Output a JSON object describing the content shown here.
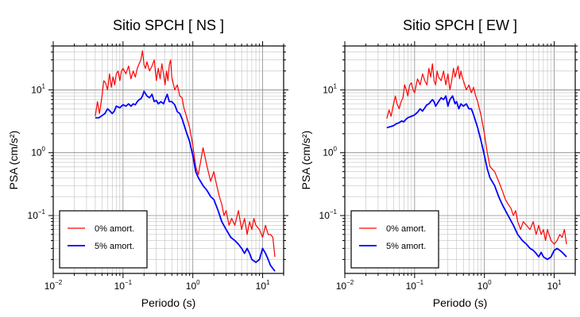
{
  "chart_data": [
    {
      "type": "line",
      "title": "Sitio SPCH [ NS ]",
      "xlabel": "Periodo (s)",
      "ylabel": "PSA (cm/s²)",
      "xscale": "log",
      "yscale": "log",
      "xlim": [
        0.01,
        20
      ],
      "ylim": [
        0.012,
        50
      ],
      "grid": true,
      "legend_position": "lower-left",
      "xticks": [
        {
          "base": "10",
          "exp": "−2"
        },
        {
          "base": "10",
          "exp": "−1"
        },
        {
          "base": "10",
          "exp": "0"
        },
        {
          "base": "10",
          "exp": "1"
        }
      ],
      "yticks": [
        {
          "base": "10",
          "exp": "−1"
        },
        {
          "base": "10",
          "exp": "0"
        },
        {
          "base": "10",
          "exp": "1"
        }
      ],
      "series": [
        {
          "name": "0% amort.",
          "color": "#ff0000",
          "x": [
            0.04,
            0.043,
            0.046,
            0.05,
            0.053,
            0.056,
            0.06,
            0.064,
            0.068,
            0.072,
            0.076,
            0.08,
            0.085,
            0.09,
            0.095,
            0.1,
            0.11,
            0.12,
            0.13,
            0.14,
            0.15,
            0.16,
            0.17,
            0.18,
            0.19,
            0.2,
            0.21,
            0.22,
            0.24,
            0.26,
            0.28,
            0.3,
            0.32,
            0.34,
            0.36,
            0.38,
            0.4,
            0.42,
            0.44,
            0.46,
            0.48,
            0.5,
            0.55,
            0.6,
            0.65,
            0.7,
            0.75,
            0.8,
            0.9,
            1.0,
            1.1,
            1.2,
            1.4,
            1.6,
            1.8,
            2.0,
            2.2,
            2.4,
            2.6,
            2.8,
            3.0,
            3.3,
            3.6,
            4.0,
            4.5,
            5.0,
            5.5,
            6.0,
            6.5,
            7.0,
            7.5,
            8.0,
            9.0,
            10.0,
            11.0,
            12.0,
            13.0,
            14.0,
            15.0
          ],
          "y": [
            3.8,
            6.5,
            4.2,
            8.0,
            14.0,
            13.0,
            10.0,
            18.0,
            11.0,
            16.0,
            12.0,
            18.0,
            20.0,
            14.0,
            20.0,
            22.0,
            18.0,
            24.0,
            15.0,
            20.0,
            16.0,
            22.0,
            26.0,
            30.0,
            42.0,
            25.0,
            22.0,
            28.0,
            20.0,
            24.0,
            30.0,
            14.0,
            22.0,
            15.0,
            26.0,
            18.0,
            12.0,
            20.0,
            14.0,
            25.0,
            30.0,
            16.0,
            10.0,
            12.0,
            8.0,
            7.5,
            5.0,
            4.0,
            2.5,
            1.3,
            0.6,
            0.45,
            1.2,
            0.6,
            0.35,
            0.5,
            0.3,
            0.2,
            0.15,
            0.1,
            0.12,
            0.07,
            0.09,
            0.07,
            0.12,
            0.06,
            0.09,
            0.05,
            0.08,
            0.06,
            0.09,
            0.07,
            0.06,
            0.045,
            0.07,
            0.05,
            0.05,
            0.045,
            0.022
          ]
        },
        {
          "name": "5% amort.",
          "color": "#0000ff",
          "x": [
            0.04,
            0.045,
            0.05,
            0.055,
            0.06,
            0.065,
            0.07,
            0.075,
            0.08,
            0.09,
            0.1,
            0.11,
            0.12,
            0.13,
            0.14,
            0.15,
            0.16,
            0.17,
            0.18,
            0.19,
            0.2,
            0.22,
            0.24,
            0.26,
            0.28,
            0.3,
            0.32,
            0.35,
            0.38,
            0.4,
            0.43,
            0.46,
            0.5,
            0.55,
            0.6,
            0.65,
            0.7,
            0.8,
            0.9,
            1.0,
            1.1,
            1.2,
            1.4,
            1.6,
            1.8,
            2.0,
            2.3,
            2.6,
            3.0,
            3.5,
            4.0,
            4.5,
            5.0,
            5.5,
            6.0,
            6.5,
            7.0,
            8.0,
            9.0,
            10.0,
            11.0,
            12.0,
            13.0,
            15.0
          ],
          "y": [
            3.6,
            3.6,
            3.9,
            4.2,
            5.0,
            4.6,
            4.2,
            4.6,
            5.5,
            5.2,
            5.8,
            5.5,
            6.0,
            5.5,
            6.0,
            5.8,
            6.5,
            7.0,
            7.2,
            8.0,
            9.5,
            8.0,
            7.5,
            8.5,
            6.5,
            6.8,
            6.0,
            6.5,
            6.0,
            7.0,
            8.5,
            6.5,
            6.5,
            5.8,
            4.5,
            4.2,
            3.5,
            2.2,
            1.5,
            0.9,
            0.5,
            0.4,
            0.3,
            0.25,
            0.2,
            0.18,
            0.12,
            0.08,
            0.06,
            0.045,
            0.04,
            0.035,
            0.03,
            0.025,
            0.03,
            0.025,
            0.02,
            0.018,
            0.02,
            0.03,
            0.025,
            0.02,
            0.016,
            0.013
          ]
        }
      ]
    },
    {
      "type": "line",
      "title": "Sitio SPCH [ EW ]",
      "xlabel": "Periodo (s)",
      "ylabel": "PSA (cm/s²)",
      "xscale": "log",
      "yscale": "log",
      "xlim": [
        0.01,
        20
      ],
      "ylim": [
        0.012,
        50
      ],
      "grid": true,
      "legend_position": "lower-left",
      "xticks": [
        {
          "base": "10",
          "exp": "−2"
        },
        {
          "base": "10",
          "exp": "−1"
        },
        {
          "base": "10",
          "exp": "0"
        },
        {
          "base": "10",
          "exp": "1"
        }
      ],
      "yticks": [
        {
          "base": "10",
          "exp": "−1"
        },
        {
          "base": "10",
          "exp": "0"
        },
        {
          "base": "10",
          "exp": "1"
        }
      ],
      "series": [
        {
          "name": "0% amort.",
          "color": "#ff0000",
          "x": [
            0.04,
            0.043,
            0.046,
            0.05,
            0.053,
            0.056,
            0.06,
            0.064,
            0.068,
            0.072,
            0.076,
            0.08,
            0.085,
            0.09,
            0.095,
            0.1,
            0.11,
            0.12,
            0.13,
            0.14,
            0.15,
            0.16,
            0.17,
            0.18,
            0.19,
            0.2,
            0.21,
            0.22,
            0.24,
            0.26,
            0.28,
            0.3,
            0.32,
            0.34,
            0.36,
            0.38,
            0.4,
            0.42,
            0.44,
            0.46,
            0.48,
            0.5,
            0.55,
            0.6,
            0.65,
            0.7,
            0.75,
            0.8,
            0.9,
            1.0,
            1.1,
            1.2,
            1.4,
            1.6,
            1.8,
            2.0,
            2.2,
            2.4,
            2.6,
            2.8,
            3.0,
            3.3,
            3.6,
            4.0,
            4.5,
            5.0,
            5.5,
            6.0,
            6.5,
            7.0,
            7.5,
            8.0,
            9.0,
            10.0,
            11.0,
            12.0,
            13.0,
            14.0,
            15.0
          ],
          "y": [
            3.5,
            4.8,
            3.8,
            6.0,
            8.0,
            6.0,
            5.0,
            6.5,
            7.5,
            12.0,
            10.0,
            8.0,
            12.0,
            13.0,
            10.0,
            9.0,
            15.0,
            12.0,
            18.0,
            14.0,
            12.0,
            22.0,
            16.0,
            26.0,
            14.0,
            12.0,
            20.0,
            16.0,
            14.0,
            20.0,
            12.0,
            18.0,
            10.0,
            14.0,
            22.0,
            16.0,
            20.0,
            24.0,
            15.0,
            20.0,
            16.0,
            14.0,
            10.0,
            12.0,
            9.0,
            11.0,
            8.0,
            6.5,
            3.8,
            2.0,
            1.0,
            0.6,
            0.5,
            0.35,
            0.25,
            0.18,
            0.15,
            0.13,
            0.1,
            0.12,
            0.08,
            0.06,
            0.08,
            0.07,
            0.06,
            0.08,
            0.05,
            0.07,
            0.05,
            0.06,
            0.04,
            0.06,
            0.04,
            0.035,
            0.04,
            0.05,
            0.045,
            0.06,
            0.035
          ]
        },
        {
          "name": "5% amort.",
          "color": "#0000ff",
          "x": [
            0.04,
            0.045,
            0.05,
            0.055,
            0.06,
            0.065,
            0.07,
            0.075,
            0.08,
            0.09,
            0.1,
            0.11,
            0.12,
            0.13,
            0.14,
            0.15,
            0.16,
            0.17,
            0.18,
            0.19,
            0.2,
            0.22,
            0.24,
            0.26,
            0.28,
            0.3,
            0.32,
            0.35,
            0.38,
            0.4,
            0.43,
            0.46,
            0.5,
            0.55,
            0.6,
            0.65,
            0.7,
            0.8,
            0.9,
            1.0,
            1.1,
            1.2,
            1.4,
            1.6,
            1.8,
            2.0,
            2.3,
            2.6,
            3.0,
            3.5,
            4.0,
            4.5,
            5.0,
            5.5,
            6.0,
            6.5,
            7.0,
            8.0,
            9.0,
            10.0,
            11.0,
            12.0,
            13.0,
            15.0
          ],
          "y": [
            2.5,
            2.6,
            2.7,
            2.9,
            3.0,
            3.2,
            3.1,
            3.4,
            3.6,
            3.8,
            4.0,
            4.4,
            5.0,
            4.6,
            5.2,
            5.8,
            6.0,
            6.5,
            7.0,
            6.5,
            5.5,
            6.5,
            7.5,
            7.0,
            8.0,
            5.5,
            7.0,
            8.0,
            6.0,
            6.5,
            5.0,
            6.0,
            5.5,
            6.0,
            5.0,
            5.0,
            4.0,
            2.5,
            1.5,
            0.9,
            0.55,
            0.4,
            0.3,
            0.2,
            0.15,
            0.12,
            0.09,
            0.07,
            0.05,
            0.04,
            0.035,
            0.03,
            0.028,
            0.025,
            0.022,
            0.026,
            0.022,
            0.02,
            0.022,
            0.028,
            0.03,
            0.028,
            0.026,
            0.022
          ]
        }
      ]
    }
  ]
}
